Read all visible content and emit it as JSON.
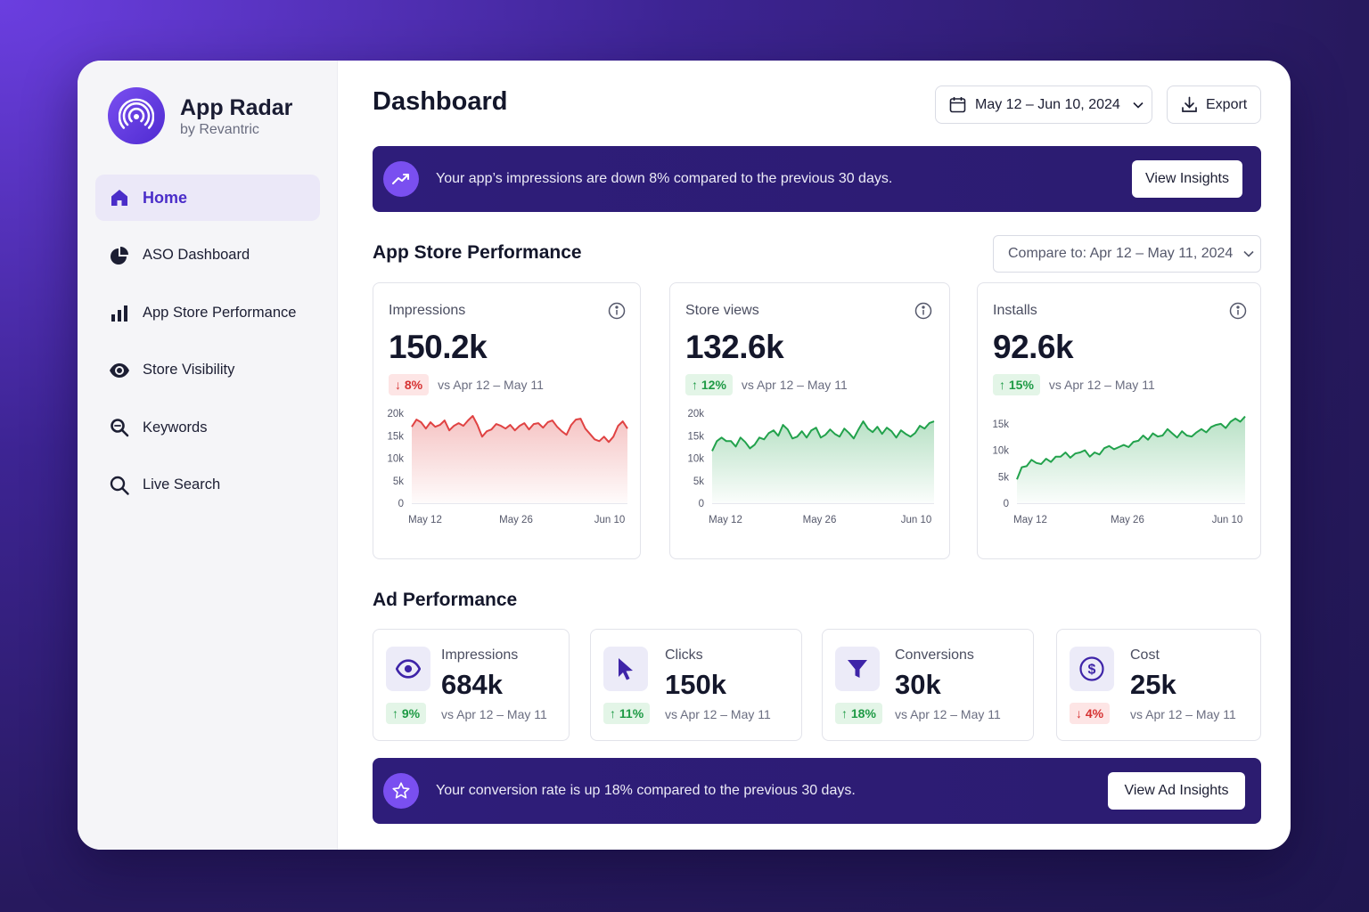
{
  "app": {
    "title": "App Radar",
    "subtitle": "by Revantric"
  },
  "sidebar": {
    "items": [
      {
        "label": "Home",
        "icon": "home-icon",
        "active": true
      },
      {
        "label": "ASO Dashboard",
        "icon": "pie-chart-icon"
      },
      {
        "label": "App Store Performance",
        "icon": "bar-chart-icon"
      },
      {
        "label": "Store Visibility",
        "icon": "eye-icon"
      },
      {
        "label": "Keywords",
        "icon": "keyword-search-icon"
      },
      {
        "label": "Live Search",
        "icon": "search-icon"
      }
    ]
  },
  "header": {
    "title": "Dashboard",
    "date_range": "May 12 – Jun 10, 2024",
    "export_label": "Export"
  },
  "alert_top": {
    "text": "Your app’s impressions are down 8% compared to the previous 30 days.",
    "button": "View Insights"
  },
  "store": {
    "title": "App Store Performance",
    "compare_label": "Compare to: Apr 12 – May 11, 2024",
    "cards": [
      {
        "label": "Impressions",
        "value": "150.2k",
        "change": "8%",
        "direction": "down",
        "vs": "vs Apr 12 – May 11"
      },
      {
        "label": "Store views",
        "value": "132.6k",
        "change": "12%",
        "direction": "up",
        "vs": "vs Apr 12 – May 11"
      },
      {
        "label": "Installs",
        "value": "92.6k",
        "change": "15%",
        "direction": "up",
        "vs": "vs Apr 12 – May 11"
      }
    ]
  },
  "chart_data": [
    {
      "type": "area",
      "title": "Impressions",
      "x_ticks": [
        "May 12",
        "May 26",
        "Jun 10"
      ],
      "y_ticks": [
        "0",
        "5k",
        "10k",
        "15k",
        "20k"
      ],
      "ylim": [
        0,
        20000
      ],
      "color": "#e04343",
      "values": [
        17000,
        18600,
        18000,
        16600,
        18000,
        17000,
        17400,
        18400,
        16200,
        17200,
        17800,
        17200,
        18400,
        19400,
        17400,
        14800,
        16000,
        16400,
        17600,
        17200,
        16600,
        17400,
        16200,
        17200,
        17800,
        16400,
        17600,
        17800,
        16800,
        18000,
        18400,
        17000,
        16000,
        15200,
        17400,
        18600,
        18800,
        16600,
        15400,
        14200,
        13800,
        14800,
        13600,
        14800,
        17200,
        18200,
        16600
      ]
    },
    {
      "type": "area",
      "title": "Store views",
      "x_ticks": [
        "May 12",
        "May 26",
        "Jun 10"
      ],
      "y_ticks": [
        "0",
        "5k",
        "10k",
        "15k",
        "20k"
      ],
      "ylim": [
        0,
        20000
      ],
      "color": "#22a24c",
      "values": [
        11600,
        13800,
        14600,
        13800,
        13800,
        12600,
        14600,
        13600,
        12200,
        13000,
        14600,
        14200,
        15600,
        16200,
        15000,
        17400,
        16400,
        14400,
        14800,
        16000,
        14600,
        16200,
        16800,
        14600,
        15200,
        16400,
        15400,
        14800,
        16600,
        15600,
        14400,
        16400,
        18200,
        16600,
        15800,
        17000,
        15400,
        16800,
        16000,
        14600,
        16200,
        15400,
        14800,
        15600,
        17200,
        16600,
        17800,
        18200
      ]
    },
    {
      "type": "area",
      "title": "Installs",
      "x_ticks": [
        "May 12",
        "May 26",
        "Jun 10"
      ],
      "y_ticks": [
        "0",
        "5k",
        "10k",
        "15k"
      ],
      "ylim": [
        0,
        17000
      ],
      "color": "#22a24c",
      "values": [
        4500,
        6800,
        7000,
        8200,
        7600,
        7400,
        8400,
        7800,
        8800,
        8800,
        9600,
        8600,
        9400,
        9600,
        10000,
        8800,
        9600,
        9200,
        10400,
        10800,
        10200,
        10600,
        11000,
        10600,
        11600,
        11800,
        12800,
        12000,
        13200,
        12600,
        12800,
        14000,
        13200,
        12400,
        13600,
        12800,
        12600,
        13400,
        14000,
        13400,
        14400,
        14800,
        15000,
        14200,
        15400,
        16000,
        15400,
        16400
      ]
    }
  ],
  "ads": {
    "title": "Ad Performance",
    "cards": [
      {
        "label": "Impressions",
        "value": "684k",
        "change": "9%",
        "direction": "up",
        "vs": "vs Apr 12 – May 11",
        "icon": "eye-icon"
      },
      {
        "label": "Clicks",
        "value": "150k",
        "change": "11%",
        "direction": "up",
        "vs": "vs Apr 12 – May 11",
        "icon": "cursor-icon"
      },
      {
        "label": "Conversions",
        "value": "30k",
        "change": "18%",
        "direction": "up",
        "vs": "vs Apr 12 – May 11",
        "icon": "funnel-icon"
      },
      {
        "label": "Cost",
        "value": "25k",
        "change": "4%",
        "direction": "down",
        "vs": "vs Apr 12 – May 11",
        "icon": "dollar-icon"
      }
    ]
  },
  "alert_bottom": {
    "text": "Your conversion rate is up 18% compared to the previous 30 days.",
    "button": "View Ad Insights"
  },
  "colors": {
    "accent": "#4a2dc9",
    "banner": "#2e1d7a",
    "positive": "#1e9a45",
    "negative": "#d63232"
  }
}
